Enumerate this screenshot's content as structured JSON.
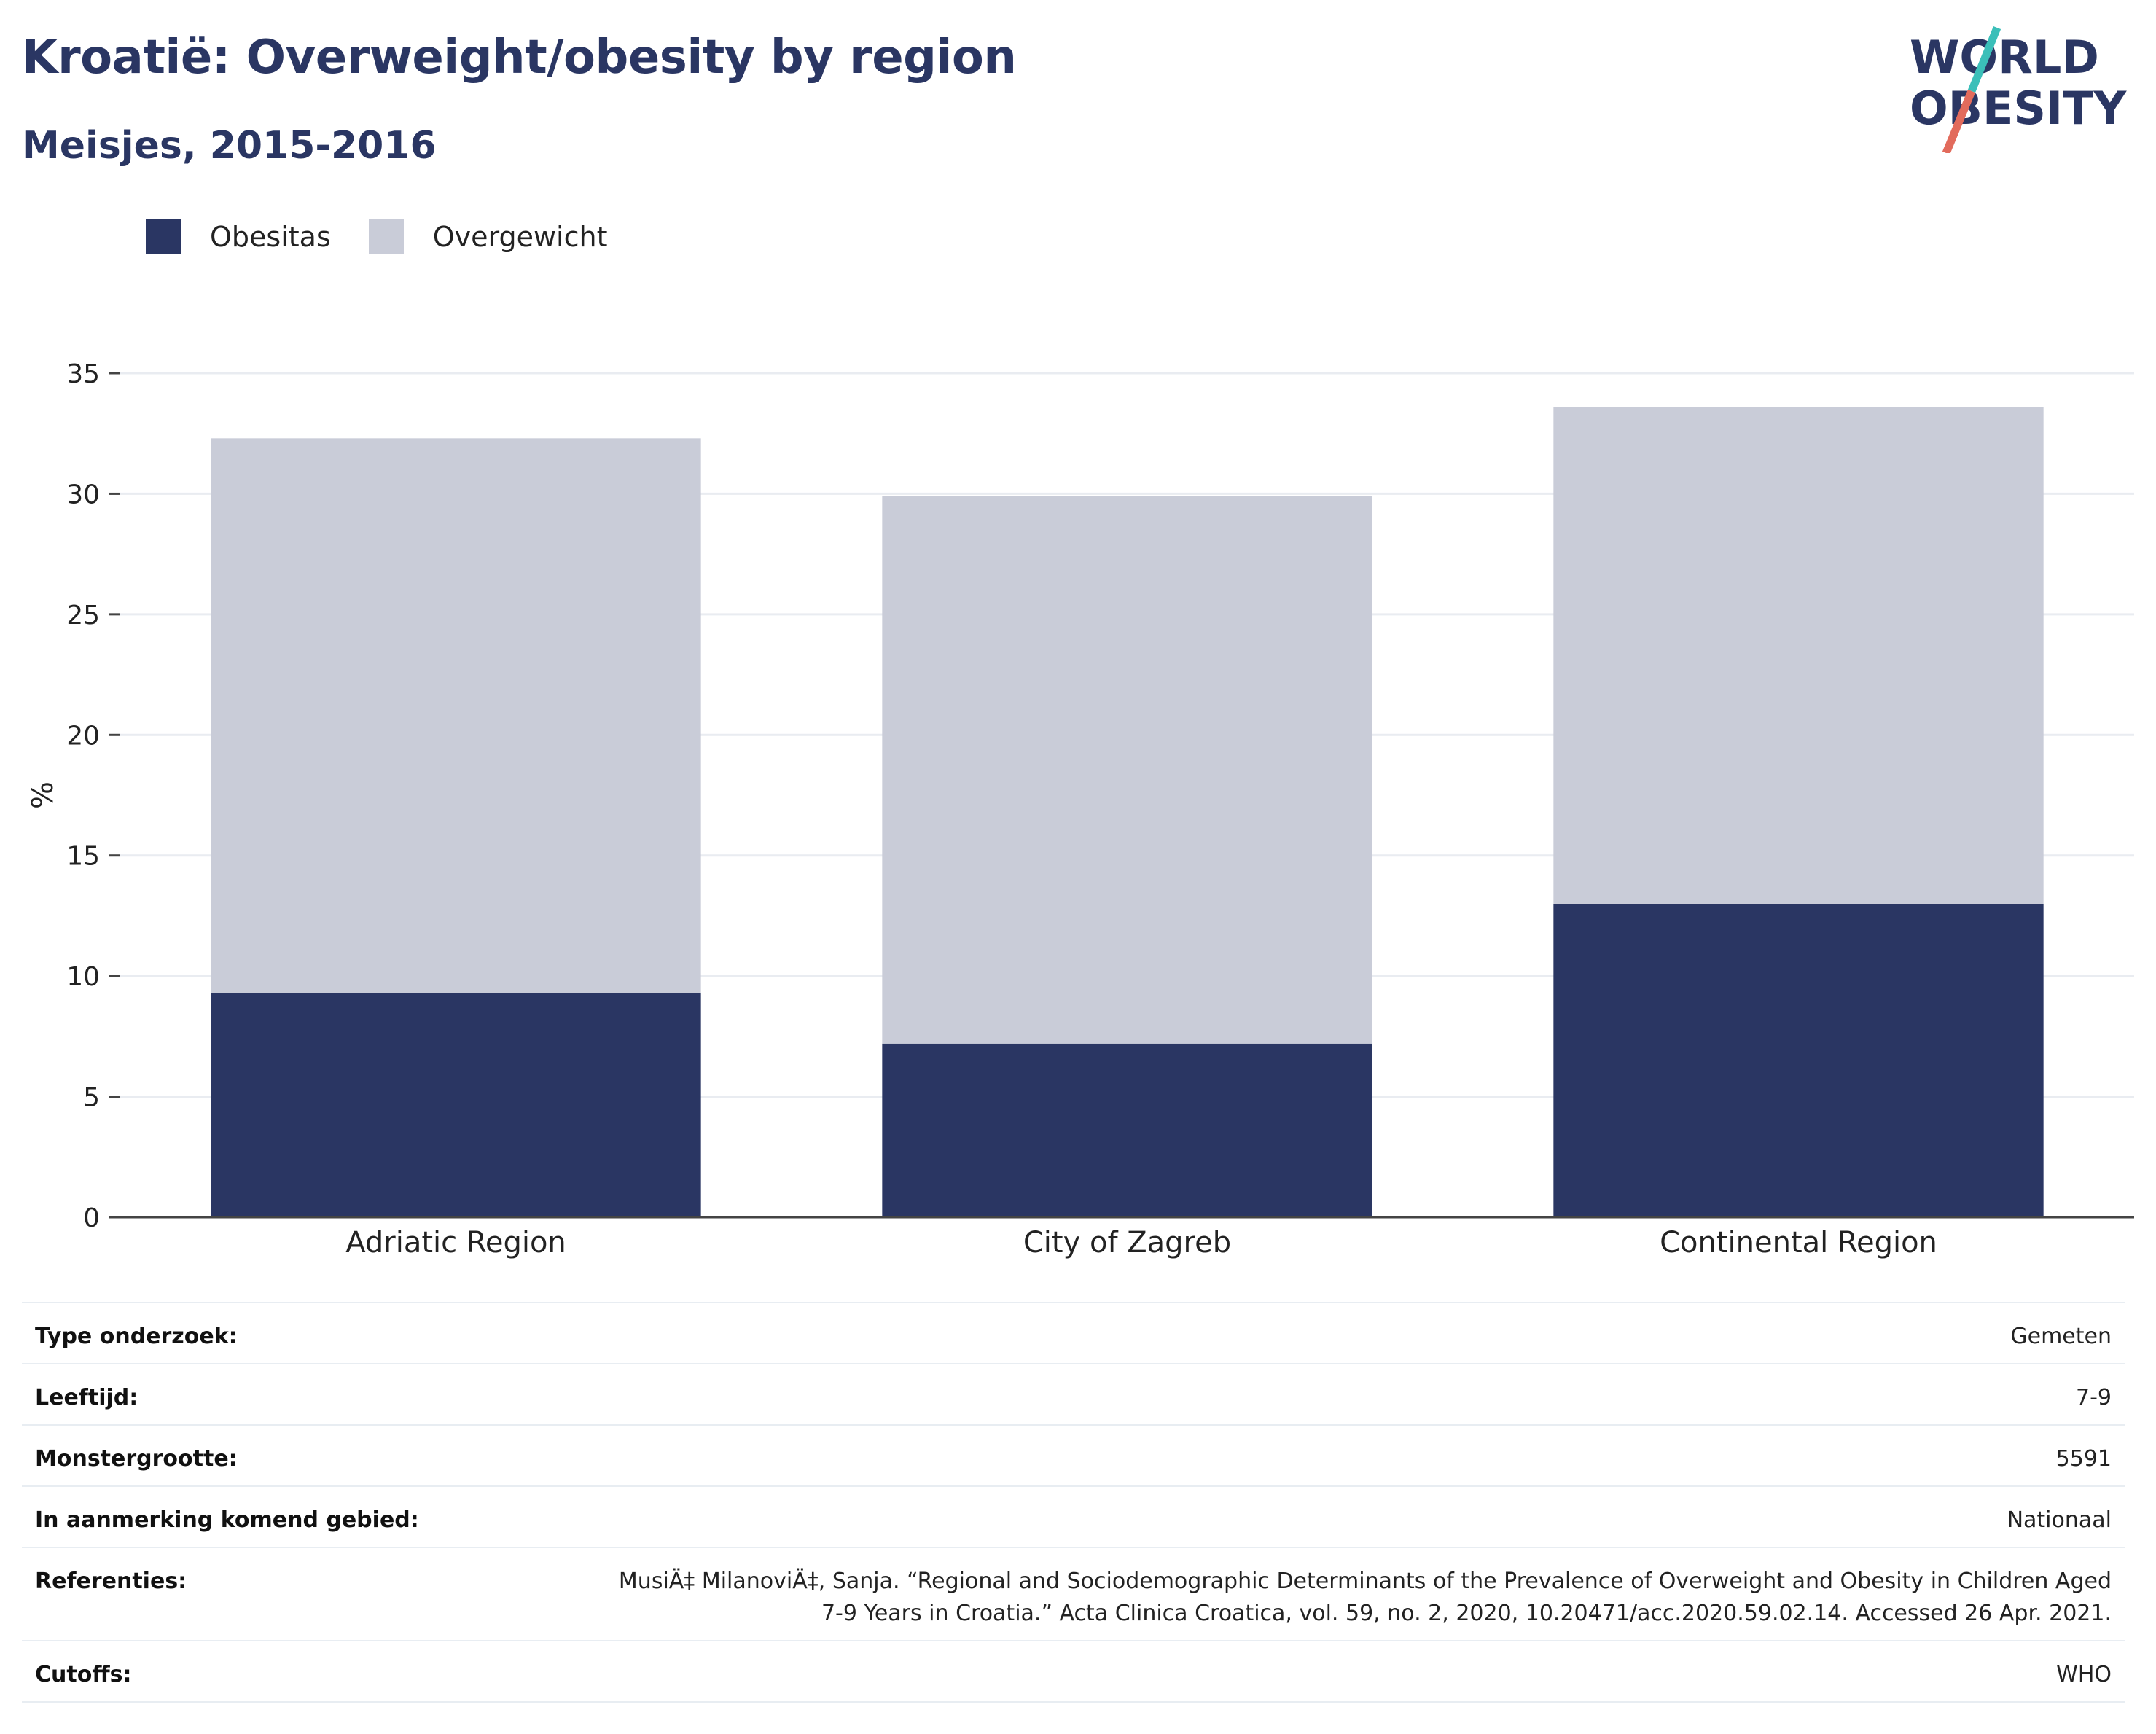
{
  "title": "Kroatië: Overweight/obesity by region",
  "subtitle": "Meisjes, 2015-2016",
  "logo": {
    "line1": "WORLD",
    "line2": "OBESITY"
  },
  "colors": {
    "obesity": "#2a3663",
    "overweight": "#c9ccd8",
    "title": "#2a3663",
    "logo_teal": "#3bbfb9",
    "logo_coral": "#e26b5c"
  },
  "legend": [
    {
      "label": "Obesitas",
      "color": "#2a3663"
    },
    {
      "label": "Overgewicht",
      "color": "#c9ccd8"
    }
  ],
  "chart_data": {
    "type": "bar",
    "stacked": true,
    "categories": [
      "Adriatic Region",
      "City of Zagreb",
      "Continental Region"
    ],
    "series": [
      {
        "name": "Obesitas",
        "values": [
          9.3,
          7.2,
          13.0
        ],
        "color": "#2a3663"
      },
      {
        "name": "Overgewicht",
        "values": [
          23.0,
          22.7,
          20.6
        ],
        "color": "#c9ccd8"
      }
    ],
    "ylabel": "%",
    "ylim": [
      0,
      35
    ],
    "yticks": [
      0,
      5,
      10,
      15,
      20,
      25,
      30,
      35
    ],
    "grid": true,
    "legend_position": "top-left"
  },
  "info": [
    {
      "key": "Type onderzoek:",
      "value": "Gemeten"
    },
    {
      "key": "Leeftijd:",
      "value": "7-9"
    },
    {
      "key": "Monstergrootte:",
      "value": "5591"
    },
    {
      "key": "In aanmerking komend gebied:",
      "value": "Nationaal"
    },
    {
      "key": "Referenties:",
      "value_lines": [
        "MusiÄ‡ MilanoviÄ‡, Sanja. “Regional and Sociodemographic Determinants of the Prevalence of Overweight and Obesity in Children Aged",
        "7-9 Years in Croatia.” Acta Clinica Croatica, vol. 59, no. 2, 2020, 10.20471/acc.2020.59.02.14. Accessed 26 Apr. 2021."
      ]
    },
    {
      "key": "Cutoffs:",
      "value": "WHO"
    }
  ]
}
